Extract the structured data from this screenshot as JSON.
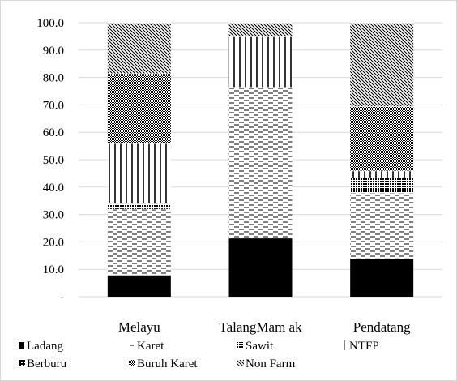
{
  "chart_data": {
    "type": "bar",
    "stacked": true,
    "categories": [
      "Melayu",
      "TalangMamak",
      "Pendatang"
    ],
    "category_labels": [
      "Melayu",
      "TalangMam ak",
      "Pendatang"
    ],
    "ylim": [
      0,
      100
    ],
    "yticks": [
      0,
      10,
      20,
      30,
      40,
      50,
      60,
      70,
      80,
      90,
      100
    ],
    "ytick_labels": [
      "-",
      "10.0",
      "20.0",
      "30.0",
      "40.0",
      "50.0",
      "60.0",
      "70.0",
      "80.0",
      "90.0",
      "100.0"
    ],
    "grid": true,
    "legend_position": "bottom",
    "series": [
      {
        "name": "Ladang",
        "values": [
          8,
          21.5,
          14
        ],
        "pattern": "solid"
      },
      {
        "name": "Karet",
        "values": [
          24,
          55,
          24
        ],
        "pattern": "dash"
      },
      {
        "name": "Sawit",
        "values": [
          2,
          0,
          5.5
        ],
        "pattern": "crosshatch"
      },
      {
        "name": "NTFP",
        "values": [
          22,
          18.5,
          2.5
        ],
        "pattern": "vertical"
      },
      {
        "name": "Berburu",
        "values": [
          0,
          0,
          0
        ],
        "pattern": "square"
      },
      {
        "name": "Buruh Karet",
        "values": [
          25.5,
          0,
          23.5
        ],
        "pattern": "dense"
      },
      {
        "name": "Non Farm",
        "values": [
          18.5,
          5,
          30.5
        ],
        "pattern": "diagonal"
      }
    ],
    "legend_labels": [
      "Ladang",
      "Karet",
      "Sawit",
      "NTFP",
      "Berburu",
      "Buruh Karet",
      "Non Farm"
    ]
  }
}
